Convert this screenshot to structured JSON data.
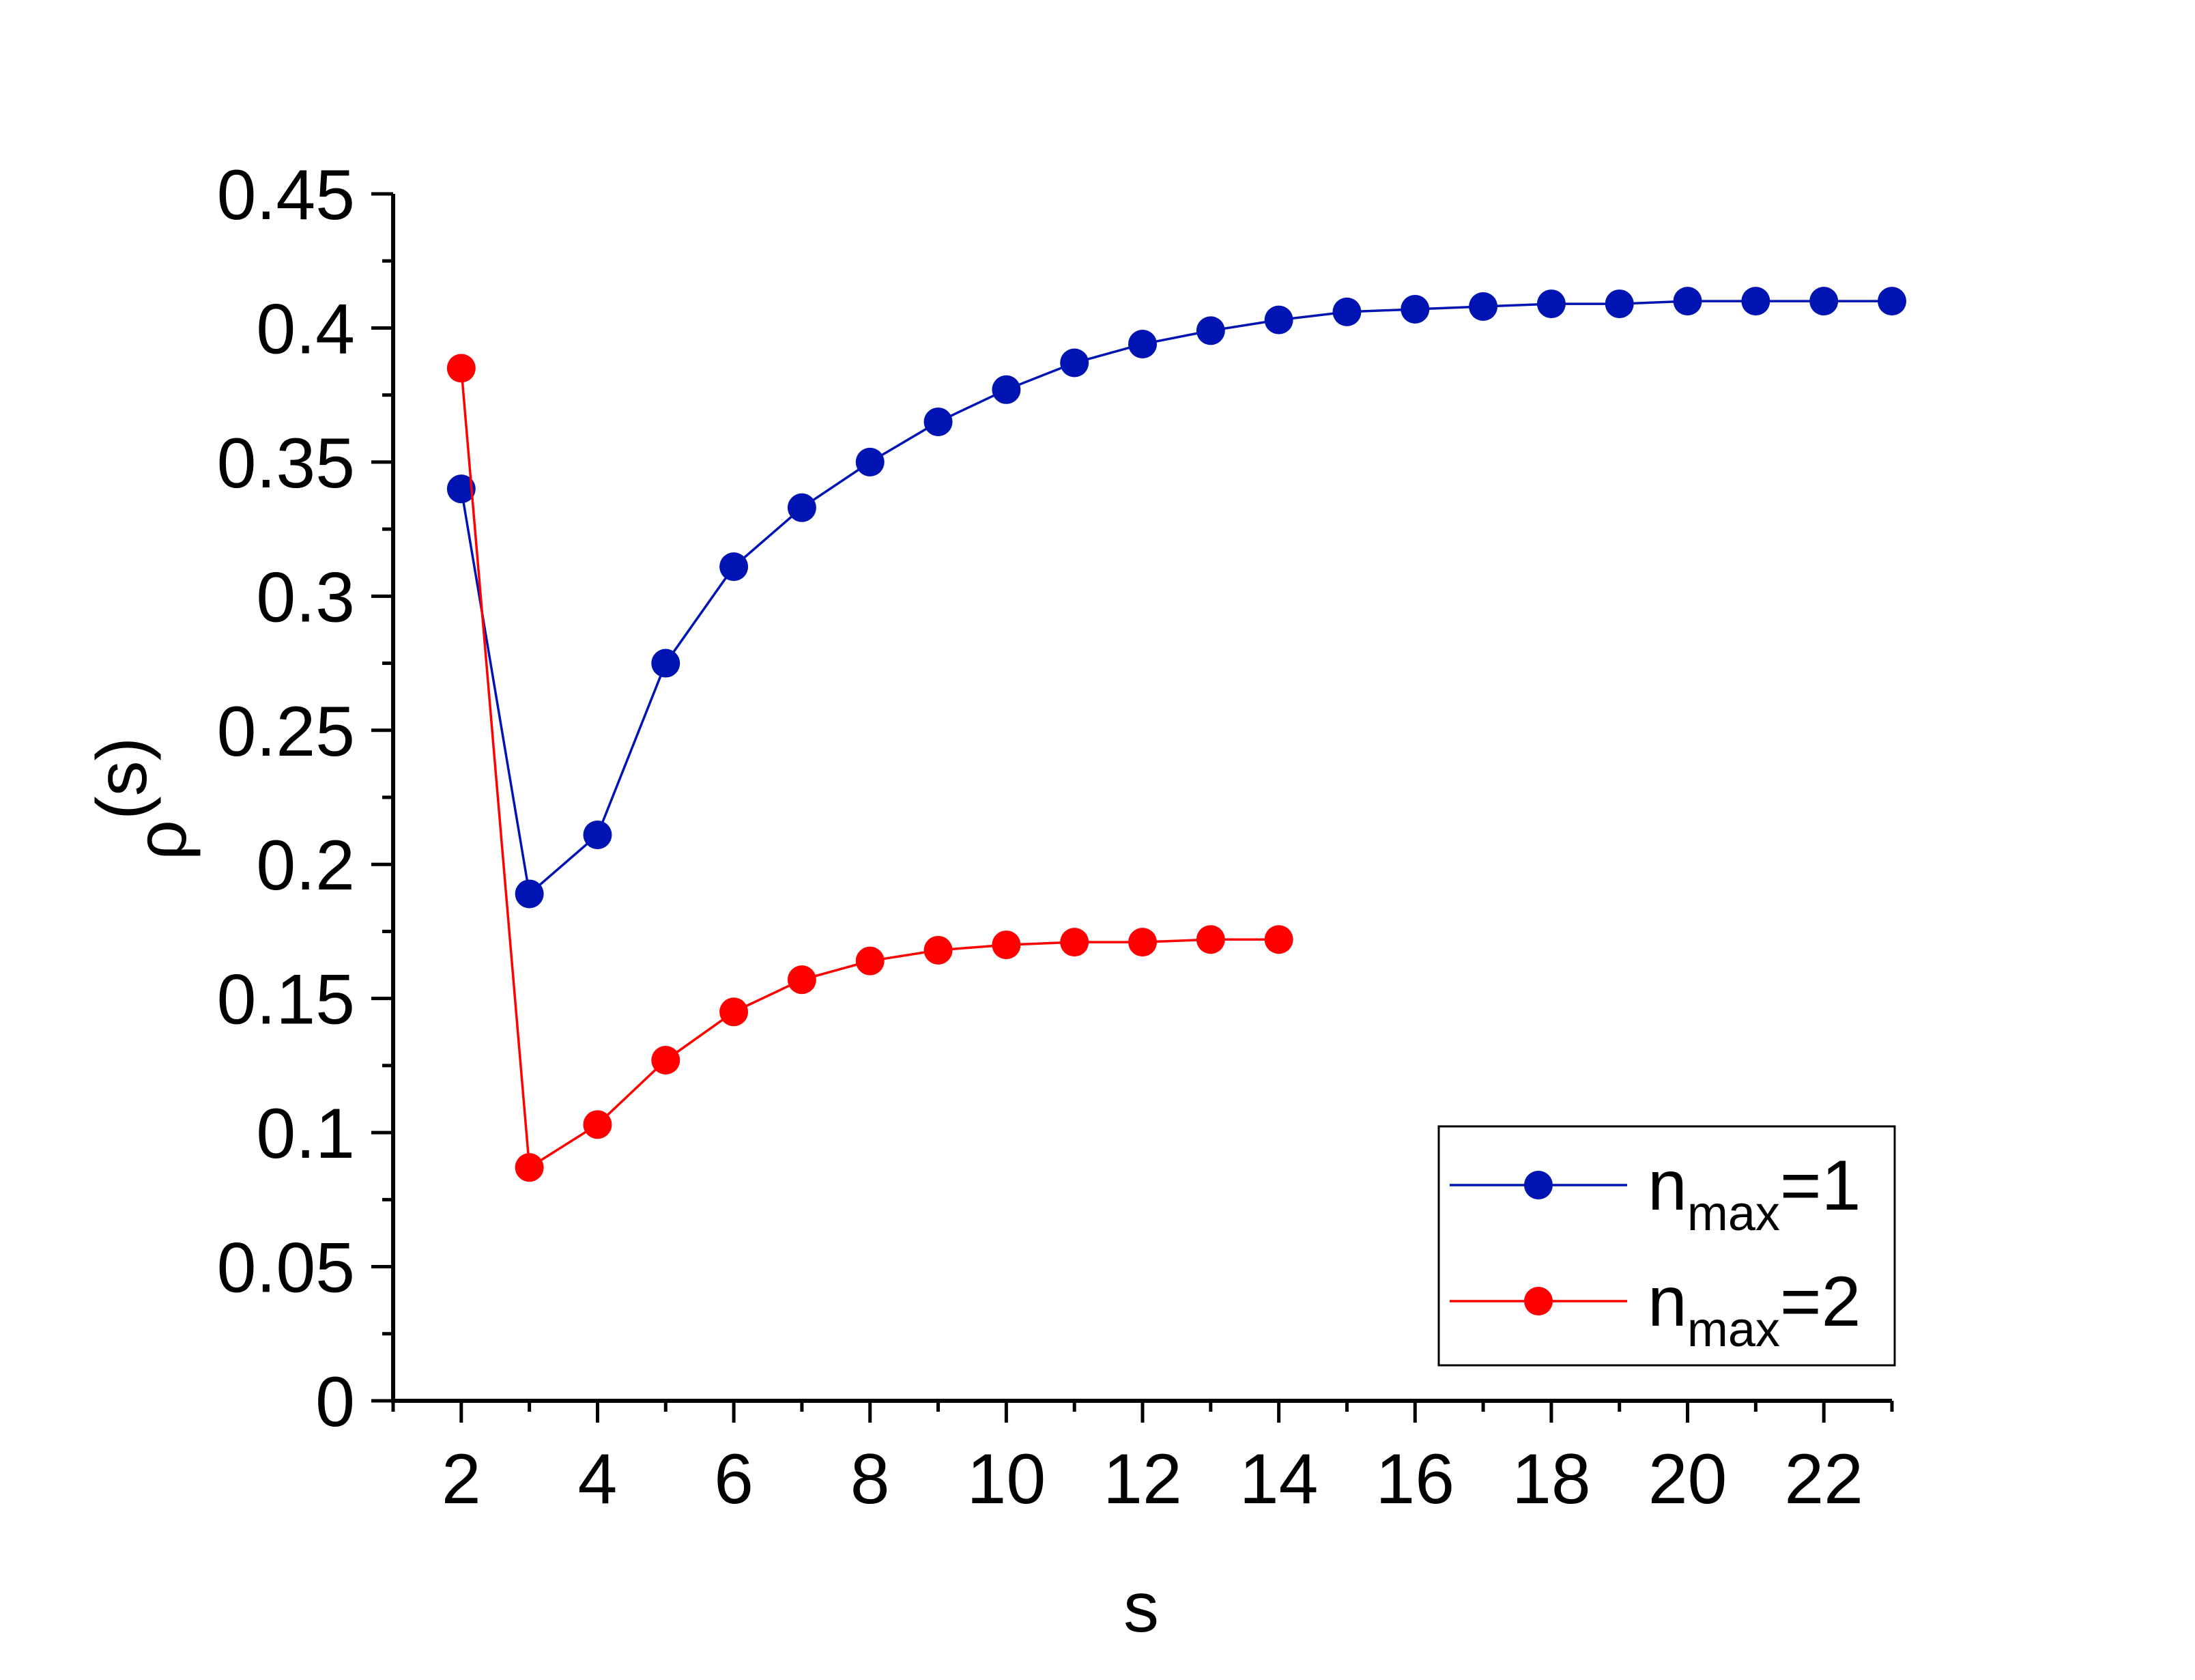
{
  "chart_data": {
    "type": "line",
    "xlabel": "s",
    "ylabel": {
      "base": "ρ",
      "sup": "(s)"
    },
    "xlim": [
      1,
      23
    ],
    "ylim": [
      0,
      0.45
    ],
    "x_ticks": [
      2,
      4,
      6,
      8,
      10,
      12,
      14,
      16,
      18,
      20,
      22
    ],
    "x_tick_labels": [
      "2",
      "4",
      "6",
      "8",
      "10",
      "12",
      "14",
      "16",
      "18",
      "20",
      "22"
    ],
    "y_ticks": [
      0,
      0.05,
      0.1,
      0.15,
      0.2,
      0.25,
      0.3,
      0.35,
      0.4,
      0.45
    ],
    "y_tick_labels": [
      "0",
      "0.05",
      "0.1",
      "0.15",
      "0.2",
      "0.25",
      "0.3",
      "0.35",
      "0.4",
      "0.45"
    ],
    "grid": false,
    "legend_position": "bottom-right",
    "series": [
      {
        "name": "n_max=1",
        "label_base": "n",
        "label_sub": "max",
        "label_tail": "=1",
        "color": "#0014b4",
        "x": [
          2,
          3,
          4,
          5,
          6,
          7,
          8,
          9,
          10,
          11,
          12,
          13,
          14,
          15,
          16,
          17,
          18,
          19,
          20,
          21,
          22,
          23
        ],
        "y": [
          0.34,
          0.189,
          0.211,
          0.275,
          0.311,
          0.333,
          0.35,
          0.365,
          0.377,
          0.387,
          0.394,
          0.399,
          0.403,
          0.406,
          0.407,
          0.408,
          0.409,
          0.409,
          0.41,
          0.41,
          0.41,
          0.41
        ]
      },
      {
        "name": "n_max=2",
        "label_base": "n",
        "label_sub": "max",
        "label_tail": "=2",
        "color": "#ff0000",
        "x": [
          2,
          3,
          4,
          5,
          6,
          7,
          8,
          9,
          10,
          11,
          12,
          13,
          14
        ],
        "y": [
          0.385,
          0.087,
          0.103,
          0.127,
          0.145,
          0.157,
          0.164,
          0.168,
          0.17,
          0.171,
          0.171,
          0.172,
          0.172
        ]
      }
    ]
  }
}
